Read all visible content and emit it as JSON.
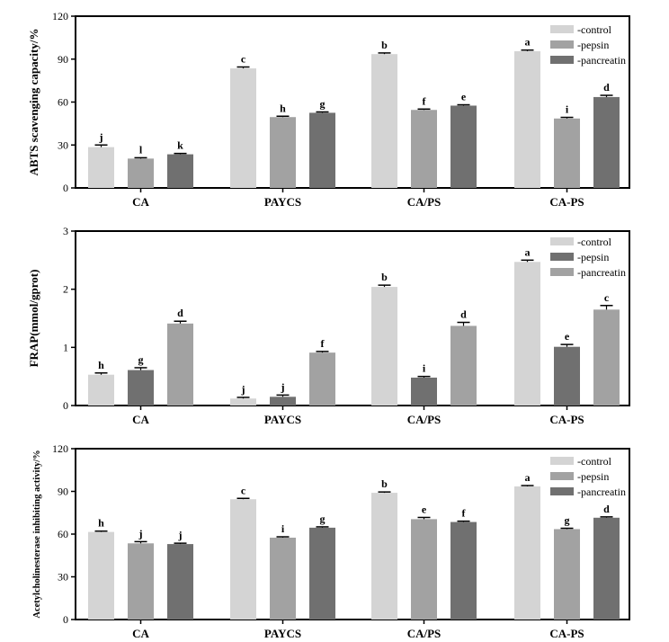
{
  "colors": {
    "control": "#d4d4d4",
    "pepsin_light": "#a2a2a2",
    "pancreatin_dark": "#707070"
  },
  "chart_data": [
    {
      "type": "bar",
      "ylabel": "ABTS scavenging capacity/%",
      "ylim": [
        0,
        120
      ],
      "yticks": [
        "0",
        "30",
        "60",
        "90",
        "120"
      ],
      "categories": [
        "CA",
        "PAYCS",
        "CA/PS",
        "CA-PS"
      ],
      "legend_position": "top-right",
      "series": [
        {
          "name": "-control",
          "color": "#d4d4d4",
          "values": [
            28.5,
            83.5,
            93.5,
            95.5
          ],
          "errors": [
            1.5,
            1.0,
            0.8,
            0.8
          ],
          "letters": [
            "j",
            "c",
            "b",
            "a"
          ]
        },
        {
          "name": "-pepsin",
          "color": "#a2a2a2",
          "values": [
            20.5,
            49.5,
            54.5,
            48.5
          ],
          "errors": [
            0.6,
            0.6,
            0.6,
            0.8
          ],
          "letters": [
            "l",
            "h",
            "f",
            "i"
          ]
        },
        {
          "name": "-pancreatin",
          "color": "#707070",
          "values": [
            23.5,
            52.5,
            57.5,
            63.5
          ],
          "errors": [
            0.6,
            0.6,
            0.6,
            1.2
          ],
          "letters": [
            "k",
            "g",
            "e",
            "d"
          ]
        }
      ]
    },
    {
      "type": "bar",
      "ylabel": "FRAP(mmol/gprot)",
      "ylim": [
        0,
        3
      ],
      "yticks": [
        "0",
        "1",
        "2",
        "3"
      ],
      "categories": [
        "CA",
        "PAYCS",
        "CA/PS",
        "CA-PS"
      ],
      "legend_position": "top-right",
      "series": [
        {
          "name": "-control",
          "color": "#d4d4d4",
          "values": [
            0.53,
            0.12,
            2.04,
            2.47
          ],
          "errors": [
            0.03,
            0.02,
            0.03,
            0.03
          ],
          "letters": [
            "h",
            "j",
            "b",
            "a"
          ]
        },
        {
          "name": "-pepsin",
          "color": "#707070",
          "values": [
            0.61,
            0.15,
            0.48,
            1.01
          ],
          "errors": [
            0.04,
            0.03,
            0.02,
            0.04
          ],
          "letters": [
            "g",
            "j",
            "i",
            "e"
          ]
        },
        {
          "name": "-pancreatin",
          "color": "#a2a2a2",
          "values": [
            1.41,
            0.91,
            1.37,
            1.65
          ],
          "errors": [
            0.04,
            0.02,
            0.06,
            0.07
          ],
          "letters": [
            "d",
            "f",
            "d",
            "c"
          ]
        }
      ]
    },
    {
      "type": "bar",
      "ylabel": "Acetylcholinesterase inhibiting activity/%",
      "ylim": [
        0,
        120
      ],
      "yticks": [
        "0",
        "30",
        "60",
        "90",
        "120"
      ],
      "categories": [
        "CA",
        "PAYCS",
        "CA/PS",
        "CA-PS"
      ],
      "legend_position": "top-right",
      "series": [
        {
          "name": "-control",
          "color": "#d4d4d4",
          "values": [
            61.5,
            84.5,
            89.0,
            93.5
          ],
          "errors": [
            0.6,
            0.6,
            0.6,
            0.6
          ],
          "letters": [
            "h",
            "c",
            "b",
            "a"
          ]
        },
        {
          "name": "-pepsin",
          "color": "#a2a2a2",
          "values": [
            53.5,
            57.5,
            70.5,
            63.5
          ],
          "errors": [
            1.2,
            0.6,
            1.2,
            0.6
          ],
          "letters": [
            "j",
            "i",
            "e",
            "g"
          ]
        },
        {
          "name": "-pancreatin",
          "color": "#707070",
          "values": [
            53.0,
            64.5,
            68.5,
            71.5
          ],
          "errors": [
            0.6,
            0.6,
            0.6,
            0.6
          ],
          "letters": [
            "j",
            "g",
            "f",
            "d"
          ]
        }
      ]
    }
  ]
}
